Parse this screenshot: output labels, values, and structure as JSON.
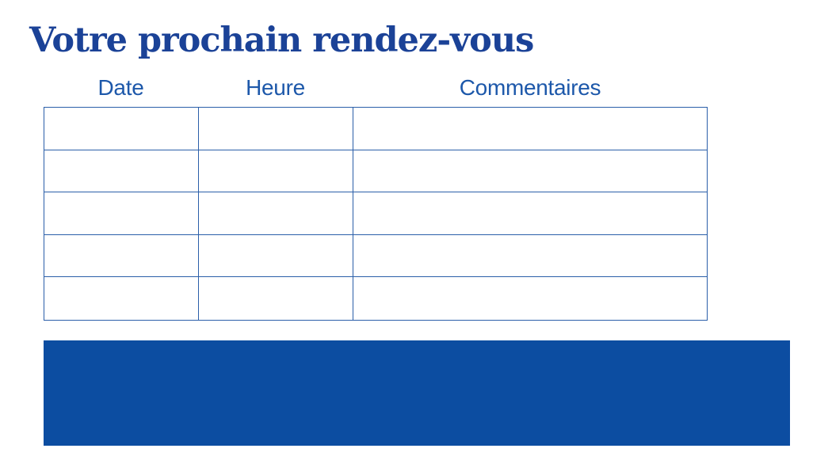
{
  "page": {
    "title": "Votre prochain rendez-vous"
  },
  "table": {
    "headers": [
      "Date",
      "Heure",
      "Commentaires"
    ],
    "rows": [
      [
        "",
        "",
        ""
      ],
      [
        "",
        "",
        ""
      ],
      [
        "",
        "",
        ""
      ],
      [
        "",
        "",
        ""
      ],
      [
        "",
        "",
        ""
      ]
    ]
  },
  "colors": {
    "background": "#ffffff",
    "title": "#1b4297",
    "header_text": "#1d58aa",
    "table_border": "#2b5fa9",
    "band": "#0c4da1"
  }
}
